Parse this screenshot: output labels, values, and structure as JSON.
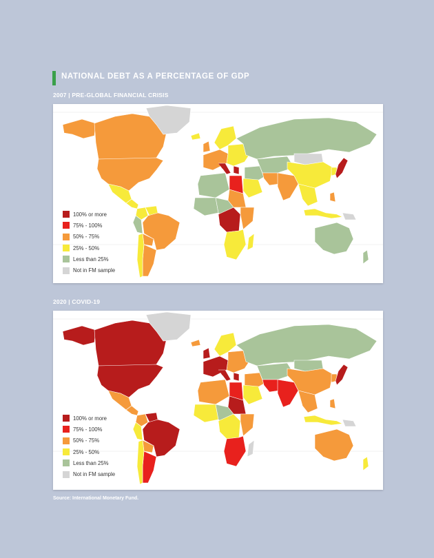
{
  "title": "NATIONAL DEBT AS A PERCENTAGE OF GDP",
  "colors": {
    "background": "#bdc6d8",
    "title_accent": "#3aa04a",
    "panel": "#ffffff"
  },
  "legend": [
    {
      "label": "100% or more",
      "color": "#b71c1c"
    },
    {
      "label": "75% - 100%",
      "color": "#e8211d"
    },
    {
      "label": "50% - 75%",
      "color": "#f59a3b"
    },
    {
      "label": "25% - 50%",
      "color": "#f7ea3a"
    },
    {
      "label": "Less than 25%",
      "color": "#a9c49a"
    },
    {
      "label": "Not in FM sample",
      "color": "#d5d5d5"
    }
  ],
  "maps": [
    {
      "label": "2007 | PRE-GLOBAL FINANCIAL CRISIS",
      "regions": {
        "canada": "50% - 75%",
        "usa": "50% - 75%",
        "alaska": "50% - 75%",
        "greenland": "Not in FM sample",
        "mexico": "25% - 50%",
        "central_america": "25% - 50%",
        "colombia": "25% - 50%",
        "venezuela": "25% - 50%",
        "peru": "Less than 25%",
        "brazil": "50% - 75%",
        "bolivia": "50% - 75%",
        "argentina": "50% - 75%",
        "chile": "25% - 50%",
        "iceland": "25% - 50%",
        "uk": "50% - 75%",
        "scandinavia": "25% - 50%",
        "western_europe": "50% - 75%",
        "italy_greece": "100% or more",
        "eastern_europe": "25% - 50%",
        "russia": "Less than 25%",
        "north_africa": "Less than 25%",
        "egypt": "75% - 100%",
        "sudan": "50% - 75%",
        "west_africa": "Less than 25%",
        "central_africa": "Less than 25%",
        "drc": "100% or more",
        "east_africa": "50% - 75%",
        "southern_africa": "25% - 50%",
        "madagascar": "25% - 50%",
        "middle_east": "Less than 25%",
        "saudi": "25% - 50%",
        "central_asia": "Less than 25%",
        "india": "50% - 75%",
        "pakistan": "50% - 75%",
        "china": "25% - 50%",
        "mongolia": "Not in FM sample",
        "se_asia": "25% - 50%",
        "japan": "100% or more",
        "korea": "25% - 50%",
        "indonesia": "25% - 50%",
        "philippines": "50% - 75%",
        "australia": "Less than 25%",
        "new_zealand": "Less than 25%",
        "png": "Not in FM sample"
      }
    },
    {
      "label": "2020 | COVID-19",
      "regions": {
        "canada": "100% or more",
        "usa": "100% or more",
        "alaska": "100% or more",
        "greenland": "Not in FM sample",
        "mexico": "50% - 75%",
        "central_america": "50% - 75%",
        "colombia": "50% - 75%",
        "venezuela": "100% or more",
        "peru": "25% - 50%",
        "brazil": "100% or more",
        "bolivia": "50% - 75%",
        "argentina": "75% - 100%",
        "chile": "25% - 50%",
        "iceland": "50% - 75%",
        "uk": "100% or more",
        "scandinavia": "25% - 50%",
        "western_europe": "100% or more",
        "italy_greece": "100% or more",
        "eastern_europe": "50% - 75%",
        "russia": "Less than 25%",
        "north_africa": "50% - 75%",
        "egypt": "75% - 100%",
        "sudan": "100% or more",
        "west_africa": "25% - 50%",
        "central_africa": "Less than 25%",
        "drc": "25% - 50%",
        "east_africa": "50% - 75%",
        "southern_africa": "75% - 100%",
        "madagascar": "Not in FM sample",
        "middle_east": "50% - 75%",
        "saudi": "25% - 50%",
        "central_asia": "Less than 25%",
        "india": "75% - 100%",
        "pakistan": "75% - 100%",
        "china": "50% - 75%",
        "mongolia": "Less than 25%",
        "se_asia": "50% - 75%",
        "japan": "100% or more",
        "korea": "50% - 75%",
        "indonesia": "25% - 50%",
        "philippines": "50% - 75%",
        "australia": "50% - 75%",
        "new_zealand": "25% - 50%",
        "png": "Not in FM sample"
      }
    }
  ],
  "source": "Source: International Monetary Fund."
}
